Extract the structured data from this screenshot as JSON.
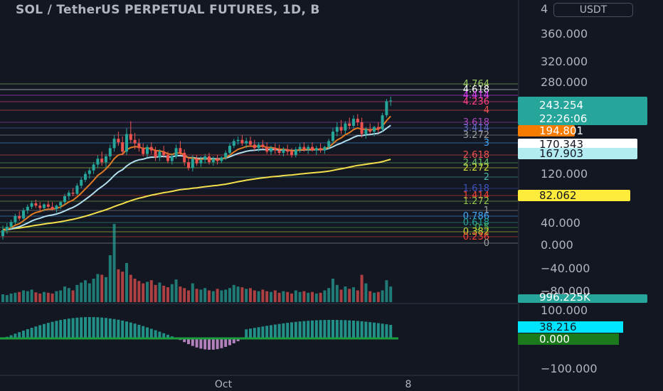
{
  "header": {
    "title": "SOL / TetherUS PERPETUAL FUTURES, 1D, B",
    "currency": "USDT"
  },
  "colors": {
    "background": "#131722",
    "up": "#26a69a",
    "down": "#ef5350",
    "ema_short": "#e07b24",
    "ema_mid": "#b2dfee",
    "ema_long": "#f4e04d"
  },
  "chart_data": {
    "type": "candlestick",
    "price_axis": {
      "ticks": [
        "360.000",
        "320.000",
        "280.000",
        "120.000",
        "40.000",
        "0.000",
        "−40.000",
        "−80.000"
      ],
      "top_tick_partial": "4"
    },
    "fib_levels": [
      {
        "label": "4.764",
        "color": "#9ccc65"
      },
      {
        "label": "4.618",
        "color": "#ffffff"
      },
      {
        "label": "4.414",
        "color": "#e040fb"
      },
      {
        "label": "4.236",
        "color": "#ff4081"
      },
      {
        "label": "4",
        "color": "#ef5350"
      },
      {
        "label": "3.618",
        "color": "#ab47bc"
      },
      {
        "label": "3.414",
        "color": "#5c6bc0"
      },
      {
        "label": "3.272",
        "color": "#9e9e9e"
      },
      {
        "label": "3",
        "color": "#42a5f5"
      },
      {
        "label": "2.618",
        "color": "#ef5350"
      },
      {
        "label": "2.414",
        "color": "#66bb6a"
      },
      {
        "label": "2.272",
        "color": "#cddc39"
      },
      {
        "label": "2",
        "color": "#4db6ac"
      },
      {
        "label": "1.618",
        "color": "#3f51b5"
      },
      {
        "label": "1.414",
        "color": "#f44336"
      },
      {
        "label": "1.272",
        "color": "#8bc34a"
      },
      {
        "label": "1",
        "color": "#9e9e9e"
      },
      {
        "label": "0.786",
        "color": "#42a5f5"
      },
      {
        "label": "0.618",
        "color": "#26a69a"
      },
      {
        "label": "0.5",
        "color": "#4caf50"
      },
      {
        "label": "0.382",
        "color": "#cddc39"
      },
      {
        "label": "0.236",
        "color": "#f44336"
      },
      {
        "label": "0",
        "color": "#9e9e9e"
      }
    ],
    "badges": [
      {
        "label": "243.254",
        "sublabel": "22:26:06",
        "color": "#26a69a",
        "text_color": "#ffffff"
      },
      {
        "label": "194.801",
        "color": "#f57c00",
        "text_color": "#ffffff"
      },
      {
        "label": "170.343",
        "color": "#ffffff",
        "text_color": "#131722"
      },
      {
        "label": "167.903",
        "color": "#b2ebf2",
        "text_color": "#131722"
      },
      {
        "label": "82.062",
        "color": "#ffeb3b",
        "text_color": "#131722"
      },
      {
        "label": "996.225K",
        "color": "#26a69a",
        "text_color": "#ffffff"
      }
    ],
    "candles": [
      {
        "o": 12,
        "h": 30,
        "l": 6,
        "c": 22
      },
      {
        "o": 22,
        "h": 34,
        "l": 16,
        "c": 28
      },
      {
        "o": 28,
        "h": 40,
        "l": 24,
        "c": 36
      },
      {
        "o": 36,
        "h": 50,
        "l": 32,
        "c": 46
      },
      {
        "o": 46,
        "h": 54,
        "l": 38,
        "c": 42
      },
      {
        "o": 42,
        "h": 60,
        "l": 40,
        "c": 56
      },
      {
        "o": 56,
        "h": 66,
        "l": 50,
        "c": 62
      },
      {
        "o": 62,
        "h": 72,
        "l": 58,
        "c": 68
      },
      {
        "o": 68,
        "h": 74,
        "l": 60,
        "c": 64
      },
      {
        "o": 64,
        "h": 70,
        "l": 56,
        "c": 60
      },
      {
        "o": 60,
        "h": 68,
        "l": 54,
        "c": 66
      },
      {
        "o": 66,
        "h": 72,
        "l": 60,
        "c": 62
      },
      {
        "o": 62,
        "h": 70,
        "l": 56,
        "c": 58
      },
      {
        "o": 58,
        "h": 66,
        "l": 52,
        "c": 64
      },
      {
        "o": 64,
        "h": 72,
        "l": 58,
        "c": 70
      },
      {
        "o": 70,
        "h": 84,
        "l": 66,
        "c": 80
      },
      {
        "o": 80,
        "h": 90,
        "l": 74,
        "c": 86
      },
      {
        "o": 86,
        "h": 94,
        "l": 80,
        "c": 84
      },
      {
        "o": 84,
        "h": 102,
        "l": 82,
        "c": 98
      },
      {
        "o": 98,
        "h": 112,
        "l": 94,
        "c": 108
      },
      {
        "o": 108,
        "h": 122,
        "l": 104,
        "c": 118
      },
      {
        "o": 118,
        "h": 128,
        "l": 110,
        "c": 124
      },
      {
        "o": 124,
        "h": 138,
        "l": 118,
        "c": 134
      },
      {
        "o": 134,
        "h": 150,
        "l": 128,
        "c": 144
      },
      {
        "o": 144,
        "h": 156,
        "l": 132,
        "c": 138
      },
      {
        "o": 138,
        "h": 152,
        "l": 128,
        "c": 148
      },
      {
        "o": 148,
        "h": 168,
        "l": 142,
        "c": 162
      },
      {
        "o": 162,
        "h": 184,
        "l": 156,
        "c": 178
      },
      {
        "o": 178,
        "h": 190,
        "l": 166,
        "c": 172
      },
      {
        "o": 172,
        "h": 182,
        "l": 150,
        "c": 156
      },
      {
        "o": 156,
        "h": 196,
        "l": 150,
        "c": 186
      },
      {
        "o": 186,
        "h": 208,
        "l": 170,
        "c": 176
      },
      {
        "o": 176,
        "h": 188,
        "l": 160,
        "c": 170
      },
      {
        "o": 170,
        "h": 178,
        "l": 156,
        "c": 162
      },
      {
        "o": 162,
        "h": 170,
        "l": 148,
        "c": 152
      },
      {
        "o": 152,
        "h": 168,
        "l": 146,
        "c": 164
      },
      {
        "o": 164,
        "h": 172,
        "l": 152,
        "c": 158
      },
      {
        "o": 158,
        "h": 164,
        "l": 140,
        "c": 146
      },
      {
        "o": 146,
        "h": 160,
        "l": 140,
        "c": 156
      },
      {
        "o": 156,
        "h": 166,
        "l": 146,
        "c": 150
      },
      {
        "o": 150,
        "h": 156,
        "l": 136,
        "c": 140
      },
      {
        "o": 140,
        "h": 152,
        "l": 134,
        "c": 148
      },
      {
        "o": 148,
        "h": 168,
        "l": 144,
        "c": 162
      },
      {
        "o": 162,
        "h": 174,
        "l": 150,
        "c": 154
      },
      {
        "o": 154,
        "h": 160,
        "l": 132,
        "c": 138
      },
      {
        "o": 138,
        "h": 146,
        "l": 124,
        "c": 128
      },
      {
        "o": 128,
        "h": 150,
        "l": 122,
        "c": 144
      },
      {
        "o": 144,
        "h": 150,
        "l": 132,
        "c": 136
      },
      {
        "o": 136,
        "h": 148,
        "l": 130,
        "c": 142
      },
      {
        "o": 142,
        "h": 152,
        "l": 136,
        "c": 148
      },
      {
        "o": 148,
        "h": 154,
        "l": 134,
        "c": 138
      },
      {
        "o": 138,
        "h": 148,
        "l": 132,
        "c": 144
      },
      {
        "o": 144,
        "h": 150,
        "l": 134,
        "c": 140
      },
      {
        "o": 140,
        "h": 148,
        "l": 136,
        "c": 146
      },
      {
        "o": 146,
        "h": 158,
        "l": 142,
        "c": 154
      },
      {
        "o": 154,
        "h": 170,
        "l": 150,
        "c": 166
      },
      {
        "o": 166,
        "h": 178,
        "l": 162,
        "c": 174
      },
      {
        "o": 174,
        "h": 182,
        "l": 168,
        "c": 176
      },
      {
        "o": 176,
        "h": 184,
        "l": 166,
        "c": 170
      },
      {
        "o": 170,
        "h": 180,
        "l": 162,
        "c": 174
      },
      {
        "o": 174,
        "h": 182,
        "l": 164,
        "c": 168
      },
      {
        "o": 168,
        "h": 176,
        "l": 158,
        "c": 162
      },
      {
        "o": 162,
        "h": 172,
        "l": 156,
        "c": 168
      },
      {
        "o": 168,
        "h": 176,
        "l": 160,
        "c": 164
      },
      {
        "o": 164,
        "h": 172,
        "l": 152,
        "c": 156
      },
      {
        "o": 156,
        "h": 166,
        "l": 150,
        "c": 162
      },
      {
        "o": 162,
        "h": 170,
        "l": 152,
        "c": 158
      },
      {
        "o": 158,
        "h": 168,
        "l": 150,
        "c": 154
      },
      {
        "o": 154,
        "h": 164,
        "l": 148,
        "c": 160
      },
      {
        "o": 160,
        "h": 168,
        "l": 150,
        "c": 156
      },
      {
        "o": 156,
        "h": 162,
        "l": 146,
        "c": 150
      },
      {
        "o": 150,
        "h": 164,
        "l": 146,
        "c": 160
      },
      {
        "o": 160,
        "h": 170,
        "l": 154,
        "c": 164
      },
      {
        "o": 164,
        "h": 172,
        "l": 156,
        "c": 160
      },
      {
        "o": 160,
        "h": 168,
        "l": 152,
        "c": 164
      },
      {
        "o": 164,
        "h": 172,
        "l": 156,
        "c": 158
      },
      {
        "o": 158,
        "h": 166,
        "l": 150,
        "c": 162
      },
      {
        "o": 162,
        "h": 170,
        "l": 154,
        "c": 158
      },
      {
        "o": 158,
        "h": 166,
        "l": 152,
        "c": 164
      },
      {
        "o": 164,
        "h": 178,
        "l": 160,
        "c": 174
      },
      {
        "o": 174,
        "h": 196,
        "l": 170,
        "c": 190
      },
      {
        "o": 190,
        "h": 206,
        "l": 182,
        "c": 198
      },
      {
        "o": 198,
        "h": 210,
        "l": 186,
        "c": 192
      },
      {
        "o": 192,
        "h": 208,
        "l": 186,
        "c": 204
      },
      {
        "o": 204,
        "h": 214,
        "l": 194,
        "c": 200
      },
      {
        "o": 200,
        "h": 218,
        "l": 196,
        "c": 212
      },
      {
        "o": 212,
        "h": 220,
        "l": 200,
        "c": 206
      },
      {
        "o": 206,
        "h": 214,
        "l": 180,
        "c": 186
      },
      {
        "o": 186,
        "h": 198,
        "l": 178,
        "c": 194
      },
      {
        "o": 194,
        "h": 204,
        "l": 186,
        "c": 190
      },
      {
        "o": 190,
        "h": 200,
        "l": 182,
        "c": 198
      },
      {
        "o": 198,
        "h": 206,
        "l": 188,
        "c": 194
      },
      {
        "o": 194,
        "h": 222,
        "l": 190,
        "c": 218
      },
      {
        "o": 218,
        "h": 246,
        "l": 214,
        "c": 242
      },
      {
        "o": 242,
        "h": 250,
        "l": 234,
        "c": 243.254
      }
    ],
    "volume": [
      20,
      18,
      22,
      24,
      26,
      30,
      28,
      32,
      25,
      22,
      26,
      24,
      22,
      28,
      30,
      40,
      36,
      30,
      44,
      50,
      56,
      48,
      60,
      72,
      70,
      64,
      120,
      200,
      84,
      78,
      100,
      70,
      60,
      54,
      48,
      52,
      56,
      44,
      50,
      42,
      38,
      46,
      58,
      40,
      36,
      30,
      48,
      34,
      32,
      36,
      30,
      28,
      34,
      30,
      32,
      36,
      44,
      40,
      38,
      34,
      36,
      30,
      28,
      32,
      28,
      26,
      30,
      24,
      28,
      26,
      22,
      30,
      26,
      28,
      24,
      26,
      22,
      24,
      30,
      36,
      60,
      44,
      32,
      40,
      34,
      38,
      30,
      70,
      48,
      28,
      24,
      26,
      30,
      56,
      40
    ],
    "oscillator": {
      "value": "38.216",
      "zero": "0.000",
      "ticks": [
        "100.000",
        "−100.000"
      ]
    },
    "x_labels": [
      "Oct",
      "8"
    ]
  }
}
